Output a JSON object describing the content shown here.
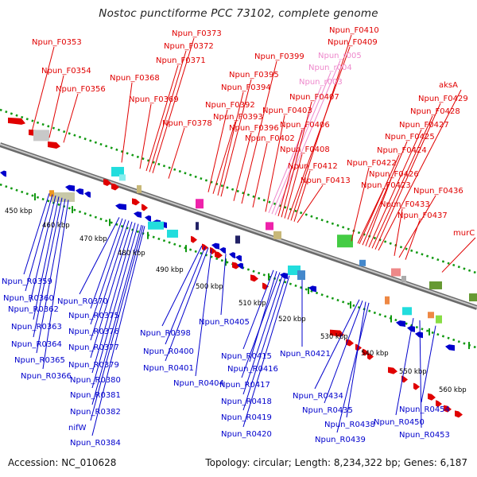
{
  "title": "Nostoc punctiforme PCC 73102, complete genome",
  "footer": {
    "accession": "Accession: NC_010628",
    "info": "Topology: circular; Length: 8,234,322 bp; Genes: 6,187"
  },
  "colors": {
    "forward": "#e00000",
    "forward_light": "#ee88cc",
    "reverse": "#0000cc",
    "backbone": "#888888",
    "ticks": "#119911"
  },
  "kbp_labels": [
    "450 kbp",
    "460 kbp",
    "470 kbp",
    "480 kbp",
    "490 kbp",
    "500 kbp",
    "510 kbp",
    "520 kbp",
    "530 kbp",
    "540 kbp",
    "550 kbp",
    "560 kbp"
  ],
  "forward_genes": [
    "Npun_F0353",
    "Npun_F0354",
    "Npun_F0356",
    "Npun_F0368",
    "Npun_F0369",
    "Npun_F0371",
    "Npun_F0372",
    "Npun_F0373",
    "Npun_F0378",
    "Npun_F0392",
    "Npun_F0393",
    "Npun_F0394",
    "Npun_F0395",
    "Npun_F0396",
    "Npun_F0399",
    "Npun_F0402",
    "Npun_F0403",
    "Npun_r003",
    "Npun_r004",
    "Npun_r005",
    "Npun_F0406",
    "Npun_F0407",
    "Npun_F0408",
    "Npun_F0409",
    "Npun_F0410",
    "Npun_F0412",
    "Npun_F0413",
    "Npun_F0422",
    "Npun_F0423",
    "Npun_F0424",
    "Npun_F0425",
    "Npun_F0426",
    "Npun_F0427",
    "Npun_F0428",
    "Npun_F0429",
    "aksA",
    "Npun_F0433",
    "Npun_F0436",
    "Npun_F0437",
    "murC"
  ],
  "reverse_genes": [
    "Npun_R0359",
    "Npun_R0360",
    "Npun_R0362",
    "Npun_R0363",
    "Npun_R0364",
    "Npun_R0365",
    "Npun_R0366",
    "Npun_R0370",
    "Npun_R0375",
    "Npun_R0376",
    "Npun_R0377",
    "Npun_R0379",
    "Npun_R0380",
    "Npun_R0381",
    "Npun_R0382",
    "nifW",
    "Npun_R0384",
    "Npun_R0398",
    "Npun_R0400",
    "Npun_R0401",
    "Npun_R0404",
    "Npun_R0405",
    "Npun_R0415",
    "Npun_R0416",
    "Npun_R0417",
    "Npun_R0418",
    "Npun_R0419",
    "Npun_R0420",
    "Npun_R0421",
    "Npun_R0434",
    "Npun_R0435",
    "Npun_R0438",
    "Npun_R0439",
    "Npun_R0450",
    "Npun_R0453",
    "Npun_R0454"
  ]
}
